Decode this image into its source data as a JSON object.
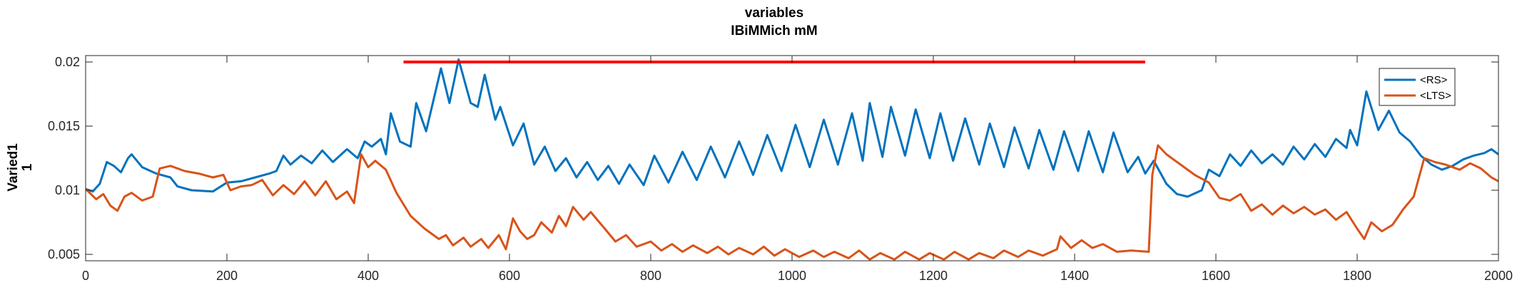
{
  "chart_data": {
    "type": "line",
    "title": "variables",
    "subtitle": "IBiMMich mM",
    "ylabel_line1": "Varied1",
    "ylabel_line2": "1",
    "xlabel": "",
    "xlim": [
      0,
      2000
    ],
    "ylim": [
      0.0045,
      0.0205
    ],
    "x_ticks": [
      0,
      200,
      400,
      600,
      800,
      1000,
      1200,
      1400,
      1600,
      1800,
      2000
    ],
    "y_ticks": [
      0.005,
      0.01,
      0.015,
      0.02
    ],
    "y_tick_labels": [
      "0.005",
      "0.01",
      "0.015",
      "0.02"
    ],
    "grid": false,
    "legend_position": "top-right",
    "stimulus_bar": {
      "x_start": 450,
      "x_end": 1500,
      "y": 0.02,
      "color": "#ff0000"
    },
    "series": [
      {
        "name": "<RS>",
        "color": "#0072BD",
        "points": [
          [
            0,
            0.0101
          ],
          [
            10,
            0.0099
          ],
          [
            20,
            0.0105
          ],
          [
            30,
            0.0122
          ],
          [
            40,
            0.0119
          ],
          [
            50,
            0.0114
          ],
          [
            60,
            0.0125
          ],
          [
            65,
            0.0128
          ],
          [
            80,
            0.0118
          ],
          [
            100,
            0.0113
          ],
          [
            120,
            0.011
          ],
          [
            130,
            0.0103
          ],
          [
            150,
            0.01
          ],
          [
            180,
            0.0099
          ],
          [
            200,
            0.0106
          ],
          [
            220,
            0.0107
          ],
          [
            240,
            0.011
          ],
          [
            260,
            0.0113
          ],
          [
            270,
            0.0115
          ],
          [
            280,
            0.0127
          ],
          [
            290,
            0.012
          ],
          [
            305,
            0.0127
          ],
          [
            320,
            0.0121
          ],
          [
            335,
            0.0131
          ],
          [
            350,
            0.0122
          ],
          [
            370,
            0.0132
          ],
          [
            385,
            0.0125
          ],
          [
            395,
            0.0138
          ],
          [
            405,
            0.0134
          ],
          [
            418,
            0.014
          ],
          [
            425,
            0.0128
          ],
          [
            432,
            0.016
          ],
          [
            445,
            0.0138
          ],
          [
            460,
            0.0134
          ],
          [
            468,
            0.0168
          ],
          [
            482,
            0.0146
          ],
          [
            503,
            0.0195
          ],
          [
            515,
            0.0168
          ],
          [
            528,
            0.0202
          ],
          [
            545,
            0.0168
          ],
          [
            555,
            0.0165
          ],
          [
            565,
            0.019
          ],
          [
            580,
            0.0155
          ],
          [
            587,
            0.0165
          ],
          [
            605,
            0.0135
          ],
          [
            620,
            0.0152
          ],
          [
            635,
            0.012
          ],
          [
            650,
            0.0134
          ],
          [
            665,
            0.0115
          ],
          [
            680,
            0.0125
          ],
          [
            695,
            0.011
          ],
          [
            710,
            0.0122
          ],
          [
            725,
            0.0108
          ],
          [
            740,
            0.0119
          ],
          [
            755,
            0.0105
          ],
          [
            770,
            0.012
          ],
          [
            790,
            0.0104
          ],
          [
            805,
            0.0127
          ],
          [
            825,
            0.0106
          ],
          [
            845,
            0.013
          ],
          [
            865,
            0.0108
          ],
          [
            885,
            0.0134
          ],
          [
            905,
            0.011
          ],
          [
            925,
            0.0138
          ],
          [
            945,
            0.0112
          ],
          [
            965,
            0.0143
          ],
          [
            985,
            0.0115
          ],
          [
            1005,
            0.0151
          ],
          [
            1025,
            0.0118
          ],
          [
            1045,
            0.0155
          ],
          [
            1065,
            0.012
          ],
          [
            1085,
            0.016
          ],
          [
            1100,
            0.0123
          ],
          [
            1110,
            0.0168
          ],
          [
            1128,
            0.0126
          ],
          [
            1140,
            0.0165
          ],
          [
            1160,
            0.0127
          ],
          [
            1175,
            0.0163
          ],
          [
            1195,
            0.0125
          ],
          [
            1210,
            0.016
          ],
          [
            1228,
            0.0123
          ],
          [
            1245,
            0.0156
          ],
          [
            1265,
            0.012
          ],
          [
            1280,
            0.0152
          ],
          [
            1300,
            0.0118
          ],
          [
            1315,
            0.0149
          ],
          [
            1335,
            0.0117
          ],
          [
            1350,
            0.0147
          ],
          [
            1370,
            0.0116
          ],
          [
            1385,
            0.0146
          ],
          [
            1405,
            0.0115
          ],
          [
            1420,
            0.0146
          ],
          [
            1440,
            0.0114
          ],
          [
            1455,
            0.0145
          ],
          [
            1475,
            0.0114
          ],
          [
            1490,
            0.0126
          ],
          [
            1500,
            0.0113
          ],
          [
            1512,
            0.0123
          ],
          [
            1530,
            0.0105
          ],
          [
            1545,
            0.0097
          ],
          [
            1560,
            0.0095
          ],
          [
            1580,
            0.01
          ],
          [
            1590,
            0.0116
          ],
          [
            1605,
            0.0111
          ],
          [
            1620,
            0.0128
          ],
          [
            1635,
            0.0119
          ],
          [
            1650,
            0.0131
          ],
          [
            1665,
            0.0121
          ],
          [
            1680,
            0.0128
          ],
          [
            1695,
            0.012
          ],
          [
            1710,
            0.0134
          ],
          [
            1725,
            0.0124
          ],
          [
            1740,
            0.0136
          ],
          [
            1755,
            0.0126
          ],
          [
            1770,
            0.014
          ],
          [
            1785,
            0.0133
          ],
          [
            1790,
            0.0147
          ],
          [
            1800,
            0.0135
          ],
          [
            1813,
            0.0177
          ],
          [
            1830,
            0.0147
          ],
          [
            1845,
            0.0162
          ],
          [
            1860,
            0.0145
          ],
          [
            1875,
            0.0138
          ],
          [
            1890,
            0.0127
          ],
          [
            1905,
            0.012
          ],
          [
            1920,
            0.0116
          ],
          [
            1935,
            0.0119
          ],
          [
            1950,
            0.0124
          ],
          [
            1965,
            0.0127
          ],
          [
            1980,
            0.0129
          ],
          [
            1990,
            0.0132
          ],
          [
            2000,
            0.0128
          ]
        ]
      },
      {
        "name": "<LTS>",
        "color": "#D95319",
        "points": [
          [
            0,
            0.0101
          ],
          [
            15,
            0.0093
          ],
          [
            25,
            0.0097
          ],
          [
            35,
            0.0088
          ],
          [
            45,
            0.0084
          ],
          [
            55,
            0.0095
          ],
          [
            65,
            0.0098
          ],
          [
            80,
            0.0092
          ],
          [
            95,
            0.0095
          ],
          [
            105,
            0.0117
          ],
          [
            120,
            0.0119
          ],
          [
            140,
            0.0115
          ],
          [
            160,
            0.0113
          ],
          [
            180,
            0.011
          ],
          [
            195,
            0.0112
          ],
          [
            205,
            0.01
          ],
          [
            220,
            0.0103
          ],
          [
            235,
            0.0104
          ],
          [
            250,
            0.0108
          ],
          [
            265,
            0.0096
          ],
          [
            280,
            0.0104
          ],
          [
            295,
            0.0097
          ],
          [
            310,
            0.0107
          ],
          [
            325,
            0.0096
          ],
          [
            340,
            0.0107
          ],
          [
            355,
            0.0093
          ],
          [
            370,
            0.0099
          ],
          [
            380,
            0.009
          ],
          [
            390,
            0.0128
          ],
          [
            400,
            0.0118
          ],
          [
            410,
            0.0123
          ],
          [
            425,
            0.0116
          ],
          [
            440,
            0.0098
          ],
          [
            460,
            0.008
          ],
          [
            480,
            0.007
          ],
          [
            500,
            0.0062
          ],
          [
            510,
            0.0065
          ],
          [
            520,
            0.0057
          ],
          [
            535,
            0.0063
          ],
          [
            545,
            0.0056
          ],
          [
            560,
            0.0062
          ],
          [
            570,
            0.0055
          ],
          [
            585,
            0.0065
          ],
          [
            595,
            0.0054
          ],
          [
            605,
            0.0078
          ],
          [
            615,
            0.0068
          ],
          [
            625,
            0.0062
          ],
          [
            635,
            0.0065
          ],
          [
            645,
            0.0075
          ],
          [
            660,
            0.0067
          ],
          [
            670,
            0.008
          ],
          [
            680,
            0.0072
          ],
          [
            690,
            0.0087
          ],
          [
            705,
            0.0077
          ],
          [
            715,
            0.0083
          ],
          [
            735,
            0.007
          ],
          [
            750,
            0.006
          ],
          [
            765,
            0.0065
          ],
          [
            780,
            0.0056
          ],
          [
            800,
            0.006
          ],
          [
            815,
            0.0053
          ],
          [
            830,
            0.0058
          ],
          [
            845,
            0.0052
          ],
          [
            860,
            0.0057
          ],
          [
            880,
            0.0051
          ],
          [
            895,
            0.0056
          ],
          [
            910,
            0.005
          ],
          [
            925,
            0.0055
          ],
          [
            945,
            0.005
          ],
          [
            960,
            0.0056
          ],
          [
            975,
            0.0049
          ],
          [
            990,
            0.0054
          ],
          [
            1010,
            0.0048
          ],
          [
            1030,
            0.0053
          ],
          [
            1045,
            0.0048
          ],
          [
            1060,
            0.0052
          ],
          [
            1080,
            0.0047
          ],
          [
            1095,
            0.0053
          ],
          [
            1110,
            0.0046
          ],
          [
            1125,
            0.0051
          ],
          [
            1145,
            0.0046
          ],
          [
            1160,
            0.0052
          ],
          [
            1180,
            0.0046
          ],
          [
            1195,
            0.0051
          ],
          [
            1215,
            0.0046
          ],
          [
            1230,
            0.0052
          ],
          [
            1250,
            0.0046
          ],
          [
            1265,
            0.0051
          ],
          [
            1285,
            0.0047
          ],
          [
            1300,
            0.0053
          ],
          [
            1320,
            0.0048
          ],
          [
            1335,
            0.0053
          ],
          [
            1355,
            0.0049
          ],
          [
            1375,
            0.0054
          ],
          [
            1380,
            0.0064
          ],
          [
            1395,
            0.0055
          ],
          [
            1410,
            0.0061
          ],
          [
            1425,
            0.0055
          ],
          [
            1440,
            0.0058
          ],
          [
            1460,
            0.0052
          ],
          [
            1480,
            0.0053
          ],
          [
            1505,
            0.0052
          ],
          [
            1510,
            0.0112
          ],
          [
            1518,
            0.0135
          ],
          [
            1530,
            0.0128
          ],
          [
            1550,
            0.012
          ],
          [
            1570,
            0.0112
          ],
          [
            1590,
            0.0106
          ],
          [
            1605,
            0.0094
          ],
          [
            1620,
            0.0092
          ],
          [
            1635,
            0.0097
          ],
          [
            1650,
            0.0084
          ],
          [
            1665,
            0.0089
          ],
          [
            1680,
            0.0081
          ],
          [
            1695,
            0.0088
          ],
          [
            1710,
            0.0082
          ],
          [
            1725,
            0.0087
          ],
          [
            1740,
            0.0081
          ],
          [
            1755,
            0.0085
          ],
          [
            1770,
            0.0077
          ],
          [
            1785,
            0.0083
          ],
          [
            1800,
            0.007
          ],
          [
            1810,
            0.0062
          ],
          [
            1820,
            0.0075
          ],
          [
            1835,
            0.0068
          ],
          [
            1850,
            0.0073
          ],
          [
            1865,
            0.0085
          ],
          [
            1880,
            0.0095
          ],
          [
            1895,
            0.0125
          ],
          [
            1910,
            0.0122
          ],
          [
            1925,
            0.012
          ],
          [
            1945,
            0.0116
          ],
          [
            1960,
            0.0121
          ],
          [
            1975,
            0.0117
          ],
          [
            1990,
            0.011
          ],
          [
            2000,
            0.0107
          ]
        ]
      }
    ]
  }
}
